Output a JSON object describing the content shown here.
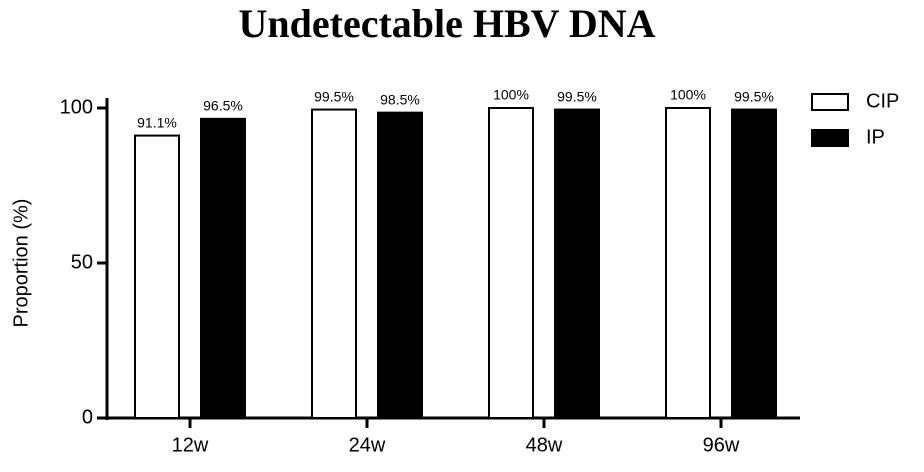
{
  "chart_data": {
    "type": "bar",
    "title": "Undetectable HBV DNA",
    "y_label": "Proportion (%)",
    "categories": [
      "12w",
      "24w",
      "48w",
      "96w"
    ],
    "series": [
      {
        "name": "CIP",
        "color": "#ffffff",
        "values": [
          91.1,
          99.5,
          100,
          100
        ],
        "value_labels": [
          "91.1%",
          "99.5%",
          "100%",
          "100%"
        ]
      },
      {
        "name": "IP",
        "color": "#000000",
        "values": [
          96.5,
          98.5,
          99.5,
          99.5
        ],
        "value_labels": [
          "96.5%",
          "98.5%",
          "99.5%",
          "99.5%"
        ]
      }
    ],
    "ylim": [
      0,
      100
    ],
    "yticks": [
      0,
      50,
      100
    ],
    "grid": false,
    "legend": "top-right"
  }
}
